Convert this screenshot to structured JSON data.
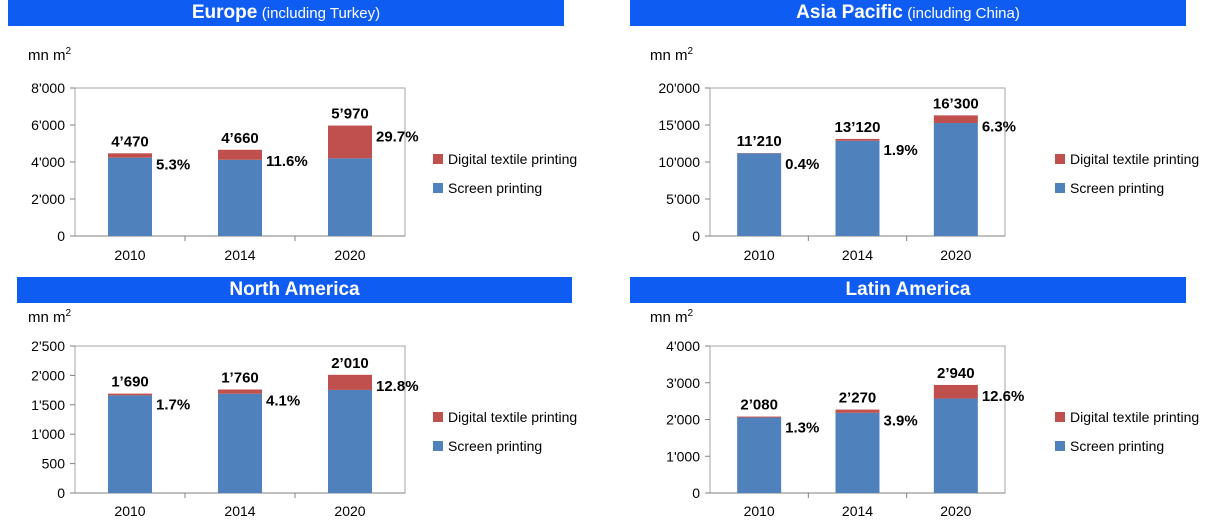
{
  "colors": {
    "header": "#0e5cf2",
    "digital": "#c0504d",
    "screen": "#4f81bd"
  },
  "chart_data": [
    {
      "type": "bar",
      "stacked": true,
      "title": "Europe",
      "subtitle": "(including Turkey)",
      "unit_label": "mn m",
      "unit_sup": "2",
      "categories": [
        "2010",
        "2014",
        "2020"
      ],
      "series": [
        {
          "name": "Screen printing",
          "values": [
            4233,
            4119,
            4197
          ]
        },
        {
          "name": "Digital textile printing",
          "values": [
            237,
            541,
            1773
          ]
        }
      ],
      "total_labels": [
        "4’470",
        "4’660",
        "5’970"
      ],
      "share_labels": [
        "5.3%",
        "11.6%",
        "29.7%"
      ],
      "totals": [
        4470,
        4660,
        5970
      ],
      "ylim": [
        0,
        8000
      ],
      "yticks": [
        0,
        2000,
        4000,
        6000,
        8000
      ],
      "ytick_labels": [
        "0",
        "2'000",
        "4'000",
        "6'000",
        "8'000"
      ],
      "legend": [
        "Digital textile printing",
        "Screen printing"
      ]
    },
    {
      "type": "bar",
      "stacked": true,
      "title": "Asia Pacific",
      "subtitle": "(including China)",
      "unit_label": "mn m",
      "unit_sup": "2",
      "categories": [
        "2010",
        "2014",
        "2020"
      ],
      "series": [
        {
          "name": "Screen printing",
          "values": [
            11165,
            12871,
            15273
          ]
        },
        {
          "name": "Digital textile printing",
          "values": [
            45,
            249,
            1027
          ]
        }
      ],
      "total_labels": [
        "11’210",
        "13’120",
        "16’300"
      ],
      "share_labels": [
        "0.4%",
        "1.9%",
        "6.3%"
      ],
      "totals": [
        11210,
        13120,
        16300
      ],
      "ylim": [
        0,
        20000
      ],
      "yticks": [
        0,
        5000,
        10000,
        15000,
        20000
      ],
      "ytick_labels": [
        "0",
        "5'000",
        "10'000",
        "15'000",
        "20'000"
      ],
      "legend": [
        "Digital textile printing",
        "Screen printing"
      ]
    },
    {
      "type": "bar",
      "stacked": true,
      "title": "North America",
      "subtitle": "",
      "unit_label": "mn m",
      "unit_sup": "2",
      "categories": [
        "2010",
        "2014",
        "2020"
      ],
      "series": [
        {
          "name": "Screen printing",
          "values": [
            1661,
            1688,
            1753
          ]
        },
        {
          "name": "Digital textile printing",
          "values": [
            29,
            72,
            257
          ]
        }
      ],
      "total_labels": [
        "1’690",
        "1’760",
        "2’010"
      ],
      "share_labels": [
        "1.7%",
        "4.1%",
        "12.8%"
      ],
      "totals": [
        1690,
        1760,
        2010
      ],
      "ylim": [
        0,
        2500
      ],
      "yticks": [
        0,
        500,
        1000,
        1500,
        2000,
        2500
      ],
      "ytick_labels": [
        "0",
        "500",
        "1'000",
        "1'500",
        "2'000",
        "2'500"
      ],
      "legend": [
        "Digital textile printing",
        "Screen printing"
      ]
    },
    {
      "type": "bar",
      "stacked": true,
      "title": "Latin America",
      "subtitle": "",
      "unit_label": "mn m",
      "unit_sup": "2",
      "categories": [
        "2010",
        "2014",
        "2020"
      ],
      "series": [
        {
          "name": "Screen printing",
          "values": [
            2053,
            2181,
            2570
          ]
        },
        {
          "name": "Digital textile printing",
          "values": [
            27,
            89,
            370
          ]
        }
      ],
      "total_labels": [
        "2’080",
        "2’270",
        "2’940"
      ],
      "share_labels": [
        "1.3%",
        "3.9%",
        "12.6%"
      ],
      "totals": [
        2080,
        2270,
        2940
      ],
      "ylim": [
        0,
        4000
      ],
      "yticks": [
        0,
        1000,
        2000,
        3000,
        4000
      ],
      "ytick_labels": [
        "0",
        "1'000",
        "2'000",
        "3'000",
        "4'000"
      ],
      "legend": [
        "Digital textile printing",
        "Screen printing"
      ]
    }
  ]
}
